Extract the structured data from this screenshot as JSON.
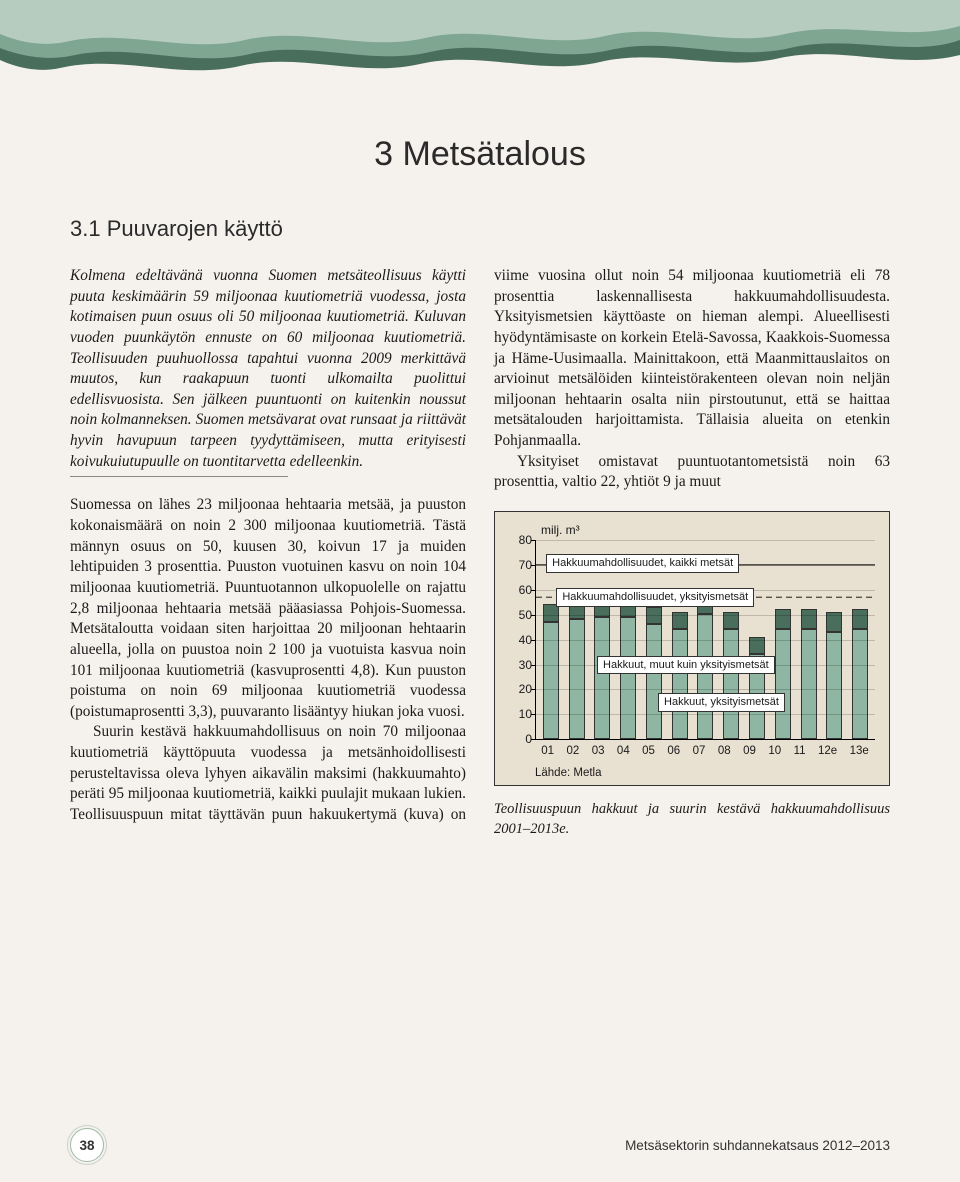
{
  "header": {
    "wave_colors": [
      "#4a6e5c",
      "#7ea690",
      "#b6ccbe"
    ],
    "background": "#f5f2ed"
  },
  "chapter_title": "3 Metsätalous",
  "section_title": "3.1 Puuvarojen käyttö",
  "intro": "Kolmena edeltävänä vuonna Suomen metsäteollisuus käytti puuta keskimäärin 59 miljoonaa kuutiometriä vuodessa, josta kotimaisen puun osuus oli 50 miljoonaa kuutiometriä. Kuluvan vuoden puunkäytön ennuste on 60 miljoonaa kuutiometriä. Teollisuuden puuhuollossa tapahtui vuonna 2009 merkittävä muutos, kun raakapuun tuonti ulkomailta puolittui edellisvuosista. Sen jälkeen puuntuonti on kuitenkin noussut noin kolmanneksen. Suomen metsävarat ovat runsaat ja riittävät hyvin havupuun tarpeen tyydyttämiseen, mutta erityisesti koivukuiutupuulle on tuontitarvetta edelleenkin.",
  "col1_p1": "Suomessa on lähes 23 miljoonaa hehtaaria metsää, ja puuston kokonaismäärä on noin 2 300 miljoonaa kuutiometriä. Tästä männyn osuus on 50, kuusen 30, koivun 17 ja muiden lehtipuiden 3 prosenttia. Puuston vuotuinen kasvu on noin 104 miljoonaa kuutiometriä. Puuntuotannon ulkopuolelle on rajattu 2,8 miljoonaa hehtaaria metsää pääasiassa Pohjois-Suomessa. Metsätaloutta voidaan siten harjoittaa 20 miljoonan hehtaarin alueella, jolla on puustoa noin 2 100 ja vuotuista kasvua noin 101 miljoonaa kuutiometriä (kasvuprosentti 4,8). Kun puuston poistuma on noin 69 miljoonaa kuutiometriä vuodessa (poistumaprosentti 3,3), puuvaranto lisääntyy hiukan joka vuosi.",
  "col1_p2": "Suurin kestävä hakkuumahdollisuus on noin 70 miljoonaa kuutiometriä käyttöpuuta vuodessa ja metsänhoidollisesti perusteltavissa oleva lyhyen aikavälin maksimi (hakkuumahto) peräti 95 miljoonaa kuutiometriä, kaikki puulajit mukaan lukien. Teollisuuspuun mitat täyttävän puun hakuukertymä (kuva) on viime vuosina ollut noin 54 miljoonaa kuutiometriä eli 78 prosenttia laskennallisesta hakkuumahdollisuudesta. Yksityismetsien käyttöaste on hieman alempi. Alueellisesti hyödyntämisaste on korkein Etelä-Savossa, Kaakkois-Suomessa ja Häme-Uusimaalla. Mainittakoon, että Maanmittauslaitos on arvioinut metsälöiden kiinteistörakenteen olevan noin neljän miljoonan hehtaarin osalta niin pirstoutunut, että se haittaa metsätalouden harjoittamista. Tällaisia alueita on etenkin Pohjanmaalla.",
  "col2_p1": "Yksityiset omistavat puuntuotantometsistä noin 63 prosenttia, valtio 22, yhtiöt 9 ja muut",
  "chart": {
    "unit_label": "milj. m³",
    "ylim": [
      0,
      80
    ],
    "ytick_step": 10,
    "yticks": [
      0,
      10,
      20,
      30,
      40,
      50,
      60,
      70,
      80
    ],
    "categories": [
      "01",
      "02",
      "03",
      "04",
      "05",
      "06",
      "07",
      "08",
      "09",
      "10",
      "11",
      "12e",
      "13e"
    ],
    "series_bottom": {
      "name": "Hakkuut, yksityismetsät",
      "values": [
        47,
        48,
        49,
        49,
        46,
        44,
        50,
        44,
        34,
        44,
        44,
        43,
        44
      ],
      "color": "#8fb6a2"
    },
    "series_top": {
      "name": "Hakkuut, muut kuin yksityismetsät",
      "values": [
        7,
        7,
        8,
        8,
        7,
        7,
        8,
        7,
        7,
        8,
        8,
        8,
        8
      ],
      "color": "#4a6e5c"
    },
    "line_all": {
      "name": "Hakkuumahdollisuudet, kaikki metsät",
      "value": 70,
      "dash": "solid",
      "color": "#000000"
    },
    "line_private": {
      "name": "Hakkuumahdollisuudet, yksityismetsät",
      "value": 57,
      "dash": "dashed",
      "color": "#000000"
    },
    "label_positions": {
      "all_forests": {
        "left_pct": 3,
        "top_pct": 7
      },
      "private_forests": {
        "left_pct": 6,
        "top_pct": 24
      },
      "other_hakkuut": {
        "left_pct": 18,
        "top_pct": 58
      },
      "private_hakkuut": {
        "left_pct": 36,
        "top_pct": 77
      }
    },
    "source": "Lähde: Metla",
    "background": "#e8e0d0"
  },
  "chart_caption": "Teollisuuspuun hakkuut ja suurin kestävä hakkuumahdollisuus 2001–2013e.",
  "footer": {
    "page_number": "38",
    "publication": "Metsäsektorin suhdannekatsaus 2012–2013"
  }
}
